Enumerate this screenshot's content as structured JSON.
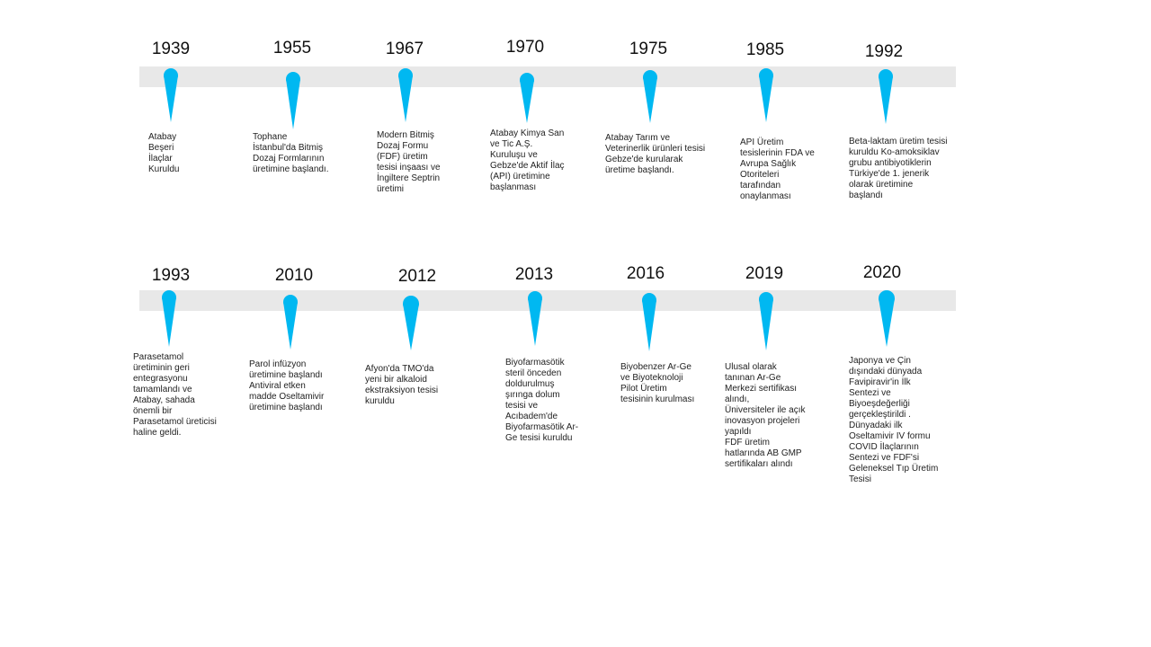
{
  "pin_color": "#00b8f1",
  "band_color": "#e8e8e8",
  "rows": [
    {
      "events": [
        {
          "year": "1939",
          "text": "Atabay\nBeşeri\nİlaçlar\nKuruldu"
        },
        {
          "year": "1955",
          "text": "Tophane\nİstanbul'da Bitmiş\nDozaj Formlarının\nüretimine başlandı."
        },
        {
          "year": "1967",
          "text": "Modern Bitmiş\nDozaj Formu\n(FDF) üretim\ntesisi inşaası ve\nİngiltere Septrin\nüretimi"
        },
        {
          "year": "1970",
          "text": "Atabay Kimya San\nve Tic A.Ş.\nKuruluşu ve\nGebze'de Aktif İlaç\n(API) üretimine\nbaşlanması"
        },
        {
          "year": "1975",
          "text": "Atabay Tarım ve\nVeterinerlik ürünleri tesisi\nGebze'de kurularak\nüretime başlandı."
        },
        {
          "year": "1985",
          "text": "API Üretim\ntesislerinin FDA ve\nAvrupa Sağlık\nOtoriteleri\ntarafından\nonaylanması"
        },
        {
          "year": "1992",
          "text": "Beta-laktam üretim tesisi\nkuruldu Ko-amoksiklav\ngrubu antibiyotiklerin\nTürkiye'de 1. jenerik\nolarak üretimine\nbaşlandı"
        }
      ]
    },
    {
      "events": [
        {
          "year": "1993",
          "text": "Parasetamol\nüretiminin geri\nentegrasyonu\ntamamlandı  ve\nAtabay, sahada\nönemli bir\nParasetamol üreticisi\nhaline geldi."
        },
        {
          "year": "2010",
          "text": "Parol infüzyon\nüretimine başlandı\nAntiviral etken\nmadde  Oseltamivir\nüretimine başlandı"
        },
        {
          "year": "2012",
          "text": "Afyon'da TMO'da\nyeni bir alkaloid\nekstraksiyon tesisi\nkuruldu"
        },
        {
          "year": "2013",
          "text": "Biyofarmasötik\nsteril önceden\ndoldurulmuş\nşırınga dolum\ntesisi ve\nAcıbadem'de\nBiyofarmasötik Ar-\nGe tesisi kuruldu"
        },
        {
          "year": "2016",
          "text": "Biyobenzer Ar-Ge\nve Biyoteknoloji\nPilot  Üretim\ntesisinin kurulması"
        },
        {
          "year": "2019",
          "text": "Ulusal olarak\ntanınan  Ar-Ge\nMerkezi sertifikası\nalındı,\nÜniversiteler ile açık\ninovasyon projeleri\nyapıldı\nFDF üretim\nhatlarında  AB GMP\nsertifikaları alındı"
        },
        {
          "year": "2020",
          "text": "Japonya ve Çin\ndışındaki dünyada\nFavipiravir'in İlk\nSentezi ve\nBiyoeşdeğerliği\ngerçekleştirildi .\nDünyadaki ilk\nOseltamivir IV formu\nCOVID İlaçlarının\nSentezi ve FDF'si\nGeleneksel Tıp Üretim\nTesisi"
        }
      ]
    }
  ]
}
